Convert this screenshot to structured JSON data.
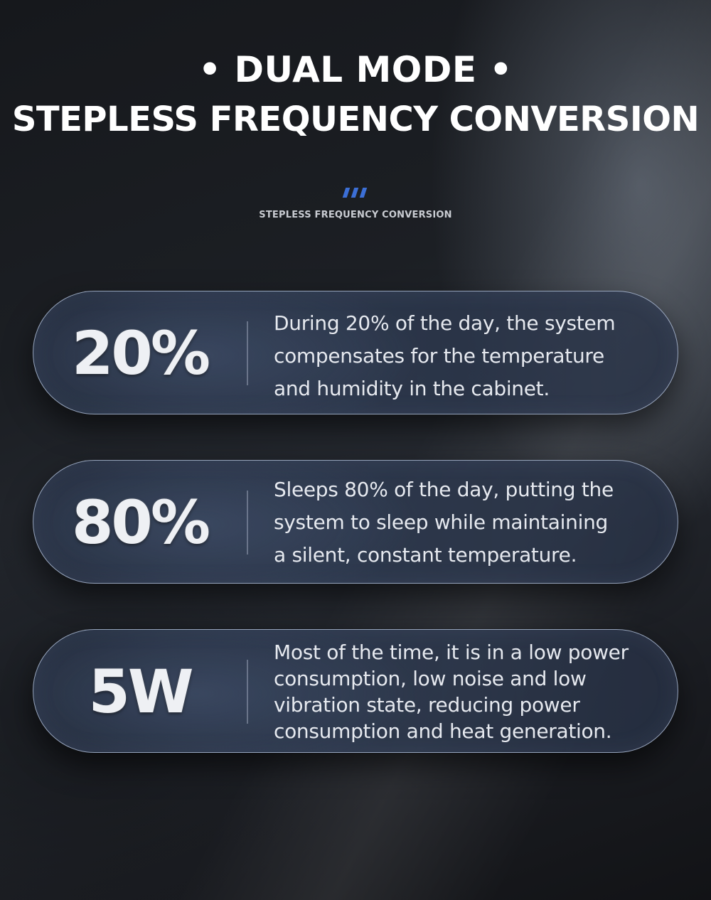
{
  "header": {
    "title_line1": "• DUAL MODE •",
    "title_line2": "STEPLESS FREQUENCY CONVERSION",
    "subtitle": "STEPLESS FREQUENCY CONVERSION",
    "accent_color": "#3c6fd6"
  },
  "cards": [
    {
      "value": "20%",
      "lines": [
        "During 20% of the day, the system",
        "compensates for the temperature",
        "and humidity in the cabinet."
      ]
    },
    {
      "value": "80%",
      "lines": [
        "Sleeps 80% of the day, putting the",
        "system to sleep while maintaining",
        "a silent, constant temperature."
      ]
    },
    {
      "value": "5W",
      "lines": [
        "Most of the time, it is in a low power",
        "consumption, low noise and low",
        "vibration state, reducing power",
        "consumption and heat generation."
      ]
    }
  ]
}
